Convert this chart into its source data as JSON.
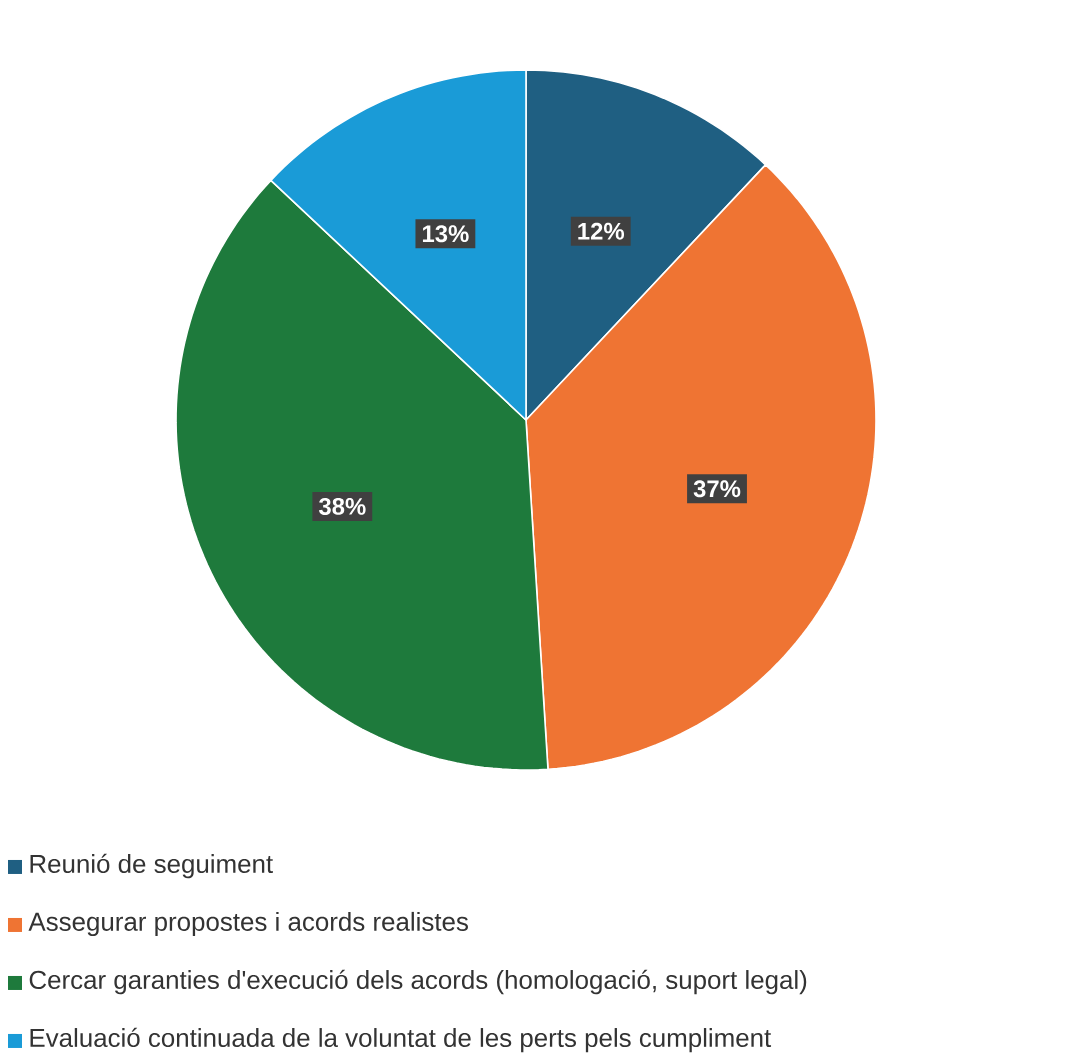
{
  "chart_data": {
    "type": "pie",
    "categories": [
      "Reunió de seguiment",
      "Assegurar propostes i acords realistes",
      "Cercar garanties d'execució dels acords (homologació, suport legal)",
      "Evaluació continuada de la voluntat de les perts pels cumpliment"
    ],
    "values": [
      12,
      37,
      38,
      13
    ],
    "colors": [
      "#1f5f82",
      "#ef7433",
      "#1e7a3c",
      "#1a9bd7"
    ],
    "value_labels": [
      "12%",
      "37%",
      "38%",
      "13%"
    ],
    "legend": "bottom"
  }
}
